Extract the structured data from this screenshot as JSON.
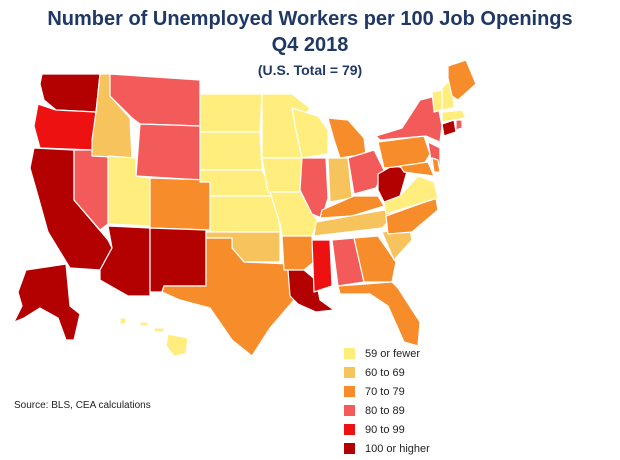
{
  "title": "Number of Unemployed Workers per 100 Job Openings",
  "subtitle": "Q4 2018",
  "note": "(U.S. Total = 79)",
  "source": "Source: BLS, CEA calculations",
  "colors": {
    "c59": "#ffee7e",
    "c60": "#f7c35c",
    "c70": "#f78c2a",
    "c80": "#f35b5b",
    "c90": "#ee1111",
    "c100": "#b30000"
  },
  "legend": [
    {
      "label": "59 or fewer",
      "color": "#ffee7e"
    },
    {
      "label": "60 to 69",
      "color": "#f7c35c"
    },
    {
      "label": "70 to 79",
      "color": "#f78c2a"
    },
    {
      "label": "80 to 89",
      "color": "#f35b5b"
    },
    {
      "label": "90 to 99",
      "color": "#ee1111"
    },
    {
      "label": "100 or higher",
      "color": "#b30000"
    }
  ],
  "states": [
    {
      "name": "WA",
      "cat": "100 or higher"
    },
    {
      "name": "OR",
      "cat": "90 to 99"
    },
    {
      "name": "CA",
      "cat": "100 or higher"
    },
    {
      "name": "NV",
      "cat": "80 to 89"
    },
    {
      "name": "ID",
      "cat": "60 to 69"
    },
    {
      "name": "MT",
      "cat": "80 to 89"
    },
    {
      "name": "WY",
      "cat": "80 to 89"
    },
    {
      "name": "UT",
      "cat": "59 or fewer"
    },
    {
      "name": "CO",
      "cat": "70 to 79"
    },
    {
      "name": "AZ",
      "cat": "100 or higher"
    },
    {
      "name": "NM",
      "cat": "100 or higher"
    },
    {
      "name": "ND",
      "cat": "59 or fewer"
    },
    {
      "name": "SD",
      "cat": "59 or fewer"
    },
    {
      "name": "NE",
      "cat": "59 or fewer"
    },
    {
      "name": "KS",
      "cat": "59 or fewer"
    },
    {
      "name": "OK",
      "cat": "60 to 69"
    },
    {
      "name": "TX",
      "cat": "70 to 79"
    },
    {
      "name": "MN",
      "cat": "59 or fewer"
    },
    {
      "name": "IA",
      "cat": "59 or fewer"
    },
    {
      "name": "MO",
      "cat": "59 or fewer"
    },
    {
      "name": "AR",
      "cat": "70 to 79"
    },
    {
      "name": "LA",
      "cat": "100 or higher"
    },
    {
      "name": "WI",
      "cat": "59 or fewer"
    },
    {
      "name": "IL",
      "cat": "80 to 89"
    },
    {
      "name": "MI",
      "cat": "70 to 79"
    },
    {
      "name": "IN",
      "cat": "60 to 69"
    },
    {
      "name": "OH",
      "cat": "80 to 89"
    },
    {
      "name": "KY",
      "cat": "70 to 79"
    },
    {
      "name": "TN",
      "cat": "60 to 69"
    },
    {
      "name": "MS",
      "cat": "90 to 99"
    },
    {
      "name": "AL",
      "cat": "80 to 89"
    },
    {
      "name": "GA",
      "cat": "70 to 79"
    },
    {
      "name": "FL",
      "cat": "70 to 79"
    },
    {
      "name": "SC",
      "cat": "60 to 69"
    },
    {
      "name": "NC",
      "cat": "70 to 79"
    },
    {
      "name": "VA",
      "cat": "59 or fewer"
    },
    {
      "name": "WV",
      "cat": "100 or higher"
    },
    {
      "name": "PA",
      "cat": "70 to 79"
    },
    {
      "name": "NY",
      "cat": "80 to 89"
    },
    {
      "name": "NJ",
      "cat": "80 to 89"
    },
    {
      "name": "MD",
      "cat": "70 to 79"
    },
    {
      "name": "DE",
      "cat": "70 to 79"
    },
    {
      "name": "CT",
      "cat": "100 or higher"
    },
    {
      "name": "RI",
      "cat": "80 to 89"
    },
    {
      "name": "MA",
      "cat": "59 or fewer"
    },
    {
      "name": "VT",
      "cat": "59 or fewer"
    },
    {
      "name": "NH",
      "cat": "59 or fewer"
    },
    {
      "name": "ME",
      "cat": "70 to 79"
    },
    {
      "name": "AK",
      "cat": "100 or higher"
    },
    {
      "name": "HI",
      "cat": "59 or fewer"
    }
  ]
}
